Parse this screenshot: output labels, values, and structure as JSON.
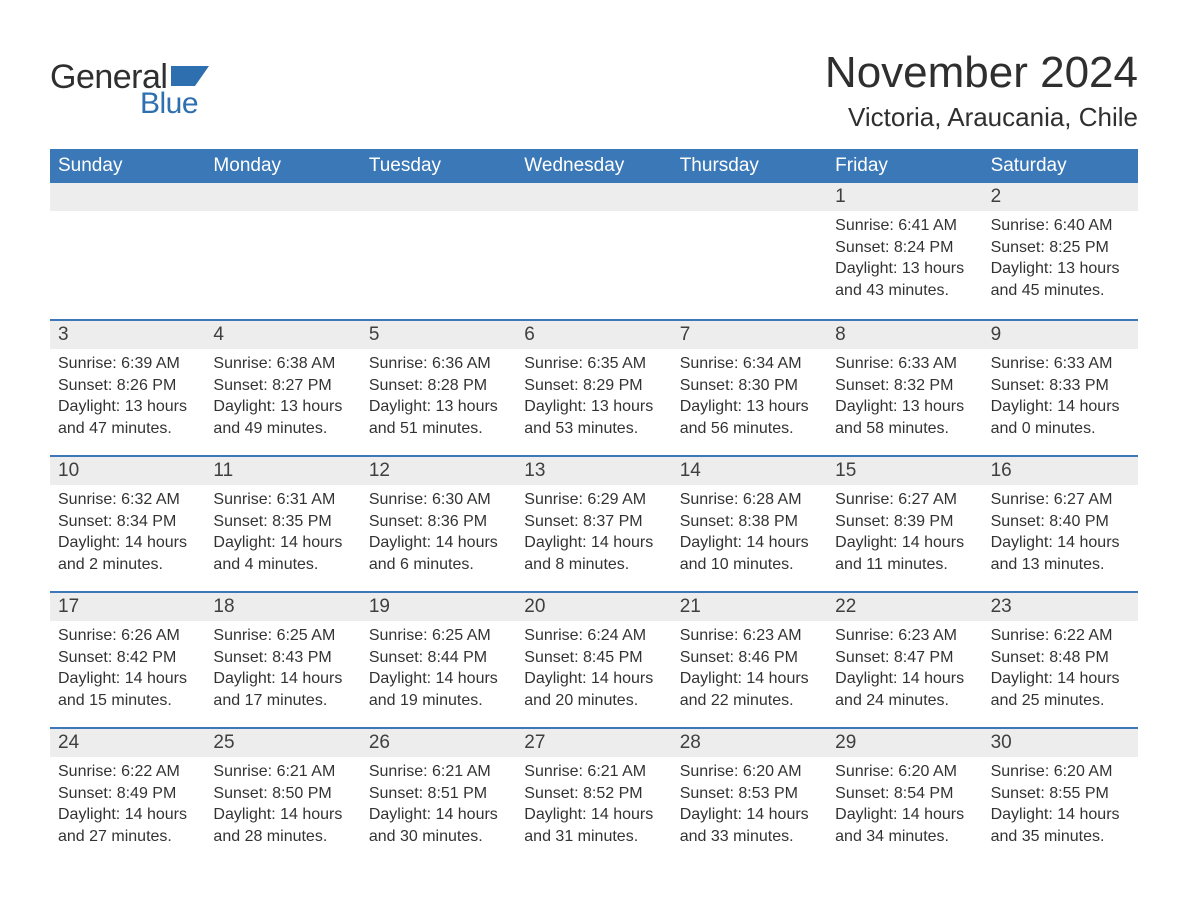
{
  "brand": {
    "word1": "General",
    "word2": "Blue",
    "flag_color": "#2e6fb0"
  },
  "title": "November 2024",
  "location": "Victoria, Araucania, Chile",
  "colors": {
    "header_bg": "#3b78b7",
    "header_text": "#ffffff",
    "daynum_bg": "#ededed",
    "week_divider": "#3b78b7",
    "body_text": "#333333",
    "background": "#ffffff"
  },
  "day_names": [
    "Sunday",
    "Monday",
    "Tuesday",
    "Wednesday",
    "Thursday",
    "Friday",
    "Saturday"
  ],
  "labels": {
    "sunrise": "Sunrise",
    "sunset": "Sunset",
    "daylight": "Daylight"
  },
  "weeks": [
    [
      {
        "blank": true
      },
      {
        "blank": true
      },
      {
        "blank": true
      },
      {
        "blank": true
      },
      {
        "blank": true
      },
      {
        "n": "1",
        "sunrise": "6:41 AM",
        "sunset": "8:24 PM",
        "daylight": "13 hours and 43 minutes."
      },
      {
        "n": "2",
        "sunrise": "6:40 AM",
        "sunset": "8:25 PM",
        "daylight": "13 hours and 45 minutes."
      }
    ],
    [
      {
        "n": "3",
        "sunrise": "6:39 AM",
        "sunset": "8:26 PM",
        "daylight": "13 hours and 47 minutes."
      },
      {
        "n": "4",
        "sunrise": "6:38 AM",
        "sunset": "8:27 PM",
        "daylight": "13 hours and 49 minutes."
      },
      {
        "n": "5",
        "sunrise": "6:36 AM",
        "sunset": "8:28 PM",
        "daylight": "13 hours and 51 minutes."
      },
      {
        "n": "6",
        "sunrise": "6:35 AM",
        "sunset": "8:29 PM",
        "daylight": "13 hours and 53 minutes."
      },
      {
        "n": "7",
        "sunrise": "6:34 AM",
        "sunset": "8:30 PM",
        "daylight": "13 hours and 56 minutes."
      },
      {
        "n": "8",
        "sunrise": "6:33 AM",
        "sunset": "8:32 PM",
        "daylight": "13 hours and 58 minutes."
      },
      {
        "n": "9",
        "sunrise": "6:33 AM",
        "sunset": "8:33 PM",
        "daylight": "14 hours and 0 minutes."
      }
    ],
    [
      {
        "n": "10",
        "sunrise": "6:32 AM",
        "sunset": "8:34 PM",
        "daylight": "14 hours and 2 minutes."
      },
      {
        "n": "11",
        "sunrise": "6:31 AM",
        "sunset": "8:35 PM",
        "daylight": "14 hours and 4 minutes."
      },
      {
        "n": "12",
        "sunrise": "6:30 AM",
        "sunset": "8:36 PM",
        "daylight": "14 hours and 6 minutes."
      },
      {
        "n": "13",
        "sunrise": "6:29 AM",
        "sunset": "8:37 PM",
        "daylight": "14 hours and 8 minutes."
      },
      {
        "n": "14",
        "sunrise": "6:28 AM",
        "sunset": "8:38 PM",
        "daylight": "14 hours and 10 minutes."
      },
      {
        "n": "15",
        "sunrise": "6:27 AM",
        "sunset": "8:39 PM",
        "daylight": "14 hours and 11 minutes."
      },
      {
        "n": "16",
        "sunrise": "6:27 AM",
        "sunset": "8:40 PM",
        "daylight": "14 hours and 13 minutes."
      }
    ],
    [
      {
        "n": "17",
        "sunrise": "6:26 AM",
        "sunset": "8:42 PM",
        "daylight": "14 hours and 15 minutes."
      },
      {
        "n": "18",
        "sunrise": "6:25 AM",
        "sunset": "8:43 PM",
        "daylight": "14 hours and 17 minutes."
      },
      {
        "n": "19",
        "sunrise": "6:25 AM",
        "sunset": "8:44 PM",
        "daylight": "14 hours and 19 minutes."
      },
      {
        "n": "20",
        "sunrise": "6:24 AM",
        "sunset": "8:45 PM",
        "daylight": "14 hours and 20 minutes."
      },
      {
        "n": "21",
        "sunrise": "6:23 AM",
        "sunset": "8:46 PM",
        "daylight": "14 hours and 22 minutes."
      },
      {
        "n": "22",
        "sunrise": "6:23 AM",
        "sunset": "8:47 PM",
        "daylight": "14 hours and 24 minutes."
      },
      {
        "n": "23",
        "sunrise": "6:22 AM",
        "sunset": "8:48 PM",
        "daylight": "14 hours and 25 minutes."
      }
    ],
    [
      {
        "n": "24",
        "sunrise": "6:22 AM",
        "sunset": "8:49 PM",
        "daylight": "14 hours and 27 minutes."
      },
      {
        "n": "25",
        "sunrise": "6:21 AM",
        "sunset": "8:50 PM",
        "daylight": "14 hours and 28 minutes."
      },
      {
        "n": "26",
        "sunrise": "6:21 AM",
        "sunset": "8:51 PM",
        "daylight": "14 hours and 30 minutes."
      },
      {
        "n": "27",
        "sunrise": "6:21 AM",
        "sunset": "8:52 PM",
        "daylight": "14 hours and 31 minutes."
      },
      {
        "n": "28",
        "sunrise": "6:20 AM",
        "sunset": "8:53 PM",
        "daylight": "14 hours and 33 minutes."
      },
      {
        "n": "29",
        "sunrise": "6:20 AM",
        "sunset": "8:54 PM",
        "daylight": "14 hours and 34 minutes."
      },
      {
        "n": "30",
        "sunrise": "6:20 AM",
        "sunset": "8:55 PM",
        "daylight": "14 hours and 35 minutes."
      }
    ]
  ]
}
